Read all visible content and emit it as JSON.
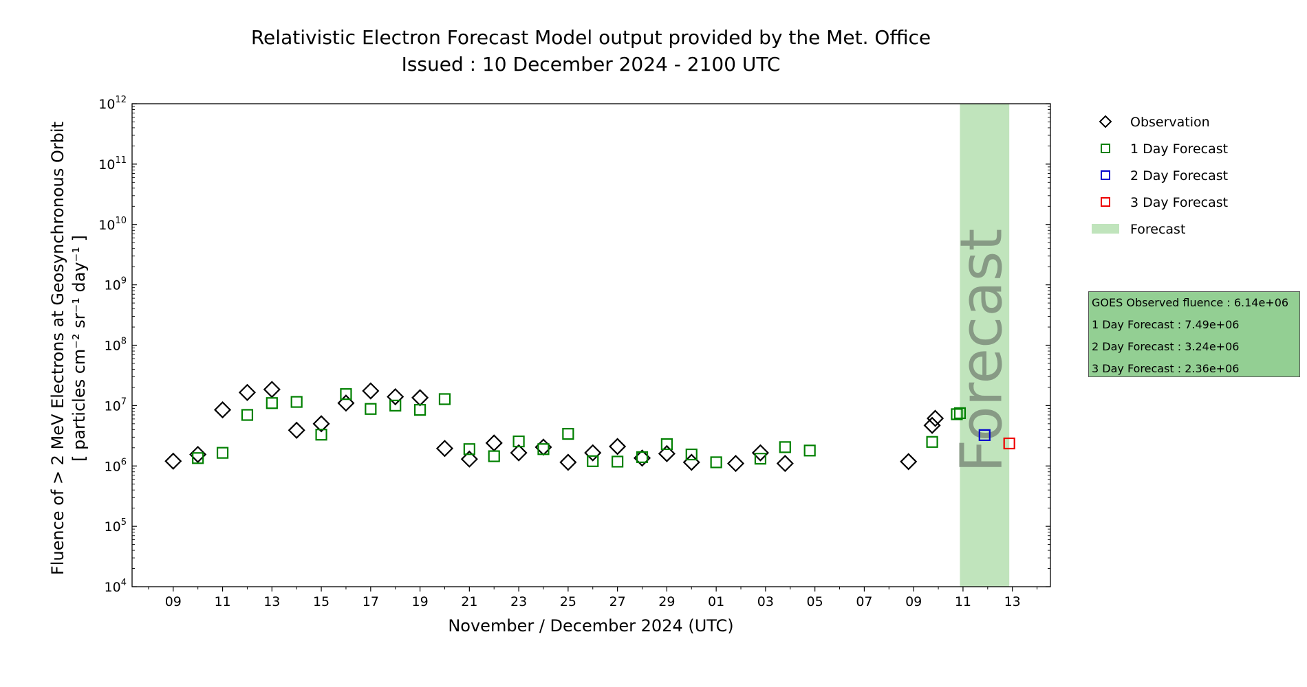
{
  "chart_data": {
    "type": "scatter",
    "title": "Relativistic Electron Forecast Model output provided by the Met. Office",
    "subtitle": "Issued : 10 December 2024 - 2100 UTC",
    "xlabel": "November / December 2024 (UTC)",
    "ylabel_line1": "Fluence of > 2 MeV Electrons at Geosynchronous Orbit",
    "ylabel_line2": "[ particles cm⁻² sr⁻¹ day⁻¹ ]",
    "y_scale": "log",
    "ylim": [
      10000,
      1000000000000
    ],
    "xlim": [
      "2024-11-07T08:00",
      "2024-12-14T13:00"
    ],
    "x_ticks": [
      {
        "date": "2024-11-09",
        "label": "09"
      },
      {
        "date": "2024-11-11",
        "label": "11"
      },
      {
        "date": "2024-11-13",
        "label": "13"
      },
      {
        "date": "2024-11-15",
        "label": "15"
      },
      {
        "date": "2024-11-17",
        "label": "17"
      },
      {
        "date": "2024-11-19",
        "label": "19"
      },
      {
        "date": "2024-11-21",
        "label": "21"
      },
      {
        "date": "2024-11-23",
        "label": "23"
      },
      {
        "date": "2024-11-25",
        "label": "25"
      },
      {
        "date": "2024-11-27",
        "label": "27"
      },
      {
        "date": "2024-11-29",
        "label": "29"
      },
      {
        "date": "2024-12-01",
        "label": "01"
      },
      {
        "date": "2024-12-03",
        "label": "03"
      },
      {
        "date": "2024-12-05",
        "label": "05"
      },
      {
        "date": "2024-12-07",
        "label": "07"
      },
      {
        "date": "2024-12-09",
        "label": "09"
      },
      {
        "date": "2024-12-11",
        "label": "11"
      },
      {
        "date": "2024-12-13",
        "label": "13"
      }
    ],
    "y_ticks": [
      {
        "value": 10000,
        "base": "10",
        "exp": "4"
      },
      {
        "value": 100000,
        "base": "10",
        "exp": "5"
      },
      {
        "value": 1000000,
        "base": "10",
        "exp": "6"
      },
      {
        "value": 10000000,
        "base": "10",
        "exp": "7"
      },
      {
        "value": 100000000,
        "base": "10",
        "exp": "8"
      },
      {
        "value": 1000000000,
        "base": "10",
        "exp": "9"
      },
      {
        "value": 10000000000,
        "base": "10",
        "exp": "10"
      },
      {
        "value": 100000000000,
        "base": "10",
        "exp": "11"
      },
      {
        "value": 1000000000000,
        "base": "10",
        "exp": "12"
      }
    ],
    "forecast_region": {
      "start": "2024-12-10T21:00",
      "end": "2024-12-12T21:00",
      "label": "Forecast",
      "color": "#c0e4bc",
      "text_color": "#879a85"
    },
    "series": [
      {
        "name": "Observation",
        "marker": "diamond",
        "color": "#000000",
        "points": [
          [
            "2024-11-09",
            1200000
          ],
          [
            "2024-11-10",
            1550000
          ],
          [
            "2024-11-11",
            8500000
          ],
          [
            "2024-11-12",
            16500000
          ],
          [
            "2024-11-13",
            18500000
          ],
          [
            "2024-11-14",
            3900000
          ],
          [
            "2024-11-15",
            5000000
          ],
          [
            "2024-11-16",
            11000000
          ],
          [
            "2024-11-17",
            17500000
          ],
          [
            "2024-11-18",
            14000000
          ],
          [
            "2024-11-19",
            13500000
          ],
          [
            "2024-11-20",
            1950000
          ],
          [
            "2024-11-21",
            1300000
          ],
          [
            "2024-11-22",
            2400000
          ],
          [
            "2024-11-23",
            1650000
          ],
          [
            "2024-11-24",
            2050000
          ],
          [
            "2024-11-25",
            1150000
          ],
          [
            "2024-11-26",
            1650000
          ],
          [
            "2024-11-27",
            2100000
          ],
          [
            "2024-11-28",
            1350000
          ],
          [
            "2024-11-29",
            1600000
          ],
          [
            "2024-11-30",
            1150000
          ],
          [
            "2024-12-01T19:00",
            1100000
          ],
          [
            "2024-12-02T19:00",
            1650000
          ],
          [
            "2024-12-03T19:00",
            1100000
          ],
          [
            "2024-12-08T19:00",
            1180000
          ],
          [
            "2024-12-09T18:00",
            4700000
          ],
          [
            "2024-12-09T21:00",
            6140000
          ]
        ]
      },
      {
        "name": "1 Day Forecast",
        "marker": "square",
        "color": "#008000",
        "points": [
          [
            "2024-11-10",
            1350000
          ],
          [
            "2024-11-11",
            1650000
          ],
          [
            "2024-11-12",
            7000000
          ],
          [
            "2024-11-13",
            11000000
          ],
          [
            "2024-11-14",
            11500000
          ],
          [
            "2024-11-15",
            3300000
          ],
          [
            "2024-11-16",
            15500000
          ],
          [
            "2024-11-17",
            8800000
          ],
          [
            "2024-11-18",
            10000000
          ],
          [
            "2024-11-19",
            8500000
          ],
          [
            "2024-11-20",
            12800000
          ],
          [
            "2024-11-21",
            1900000
          ],
          [
            "2024-11-22",
            1450000
          ],
          [
            "2024-11-23",
            2550000
          ],
          [
            "2024-11-24",
            1900000
          ],
          [
            "2024-11-25",
            3400000
          ],
          [
            "2024-11-26",
            1200000
          ],
          [
            "2024-11-27",
            1180000
          ],
          [
            "2024-11-28",
            1400000
          ],
          [
            "2024-11-29",
            2300000
          ],
          [
            "2024-11-30",
            1550000
          ],
          [
            "2024-12-01",
            1150000
          ],
          [
            "2024-12-02T19:00",
            1320000
          ],
          [
            "2024-12-03T19:00",
            2050000
          ],
          [
            "2024-12-04T19:00",
            1800000
          ],
          [
            "2024-12-09T18:00",
            2500000
          ],
          [
            "2024-12-10T18:00",
            7200000
          ],
          [
            "2024-12-10T21:00",
            7490000
          ]
        ]
      },
      {
        "name": "2 Day Forecast",
        "marker": "square",
        "color": "#0000cc",
        "points": [
          [
            "2024-12-11T21:00",
            3240000
          ]
        ]
      },
      {
        "name": "3 Day Forecast",
        "marker": "square",
        "color": "#ee0000",
        "points": [
          [
            "2024-12-12T21:00",
            2360000
          ]
        ]
      }
    ],
    "legend": [
      {
        "label": "Observation",
        "marker": "diamond",
        "color": "#000000"
      },
      {
        "label": "1 Day Forecast",
        "marker": "square",
        "color": "#008000"
      },
      {
        "label": "2 Day Forecast",
        "marker": "square",
        "color": "#0000cc"
      },
      {
        "label": "3 Day Forecast",
        "marker": "square",
        "color": "#ee0000"
      },
      {
        "label": "Forecast",
        "marker": "patch",
        "color": "#c0e4bc"
      }
    ],
    "legend_placement": "outside-right-top",
    "info_box": {
      "background": "#93cf93",
      "lines": [
        "GOES Observed fluence : 6.14e+06",
        "1 Day Forecast : 7.49e+06",
        "2 Day Forecast : 3.24e+06",
        "3 Day Forecast : 2.36e+06"
      ]
    },
    "grid": false
  }
}
